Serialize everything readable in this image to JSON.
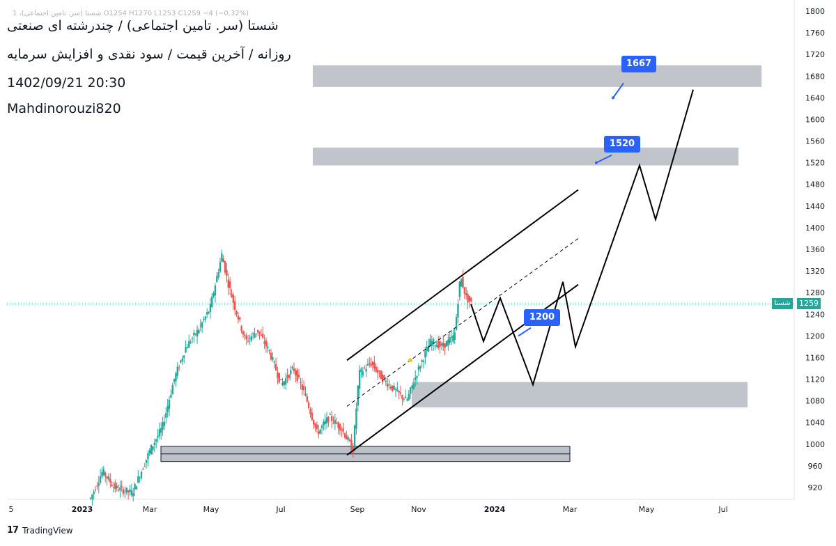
{
  "header": {
    "ohlc_line": "شستا (سر. تامین اجتماعی)، 1  O1254  H1270  L1253  C1259  −4 (−0.32%)",
    "title": "شستا (سر. تامین اجتماعی) / چندرشته ای صنعتی",
    "subtitle": "روزانه / آخرین قیمت / سود نقدی و افزایش سرمایه",
    "datetime": "1402/09/21 20:30",
    "author": "Mahdinorouzi820"
  },
  "footer": {
    "brand": "TradingView",
    "brand_mark": "17"
  },
  "price_axis": {
    "last_price": "1259",
    "symbol_short": "شستا"
  },
  "colors": {
    "up": "#26a69a",
    "down": "#ef5350",
    "zone": "#b2b5be",
    "tag": "#2962ff",
    "last_line": "#26a69a"
  },
  "chart_data": {
    "type": "candlestick",
    "ylim": [
      900,
      1800
    ],
    "y_ticks": [
      920,
      960,
      1000,
      1040,
      1080,
      1120,
      1160,
      1200,
      1240,
      1280,
      1320,
      1360,
      1400,
      1440,
      1480,
      1520,
      1560,
      1600,
      1640,
      1680,
      1720,
      1760,
      1800
    ],
    "x_ticks": [
      "5",
      "2023",
      "Mar",
      "May",
      "Jul",
      "Sep",
      "Nov",
      "2024",
      "Mar",
      "May",
      "Jul"
    ],
    "last_price": 1259,
    "price_path": [
      {
        "t": 0,
        "v": 900
      },
      {
        "t": 4,
        "v": 950
      },
      {
        "t": 8,
        "v": 920
      },
      {
        "t": 14,
        "v": 910
      },
      {
        "t": 20,
        "v": 990
      },
      {
        "t": 24,
        "v": 1030
      },
      {
        "t": 28,
        "v": 1120
      },
      {
        "t": 32,
        "v": 1180
      },
      {
        "t": 36,
        "v": 1210
      },
      {
        "t": 40,
        "v": 1250
      },
      {
        "t": 44,
        "v": 1350
      },
      {
        "t": 46,
        "v": 1300
      },
      {
        "t": 48,
        "v": 1260
      },
      {
        "t": 52,
        "v": 1190
      },
      {
        "t": 56,
        "v": 1210
      },
      {
        "t": 60,
        "v": 1170
      },
      {
        "t": 64,
        "v": 1110
      },
      {
        "t": 68,
        "v": 1140
      },
      {
        "t": 72,
        "v": 1090
      },
      {
        "t": 76,
        "v": 1020
      },
      {
        "t": 80,
        "v": 1050
      },
      {
        "t": 84,
        "v": 1030
      },
      {
        "t": 88,
        "v": 990
      },
      {
        "t": 90,
        "v": 1130
      },
      {
        "t": 94,
        "v": 1150
      },
      {
        "t": 98,
        "v": 1120
      },
      {
        "t": 102,
        "v": 1100
      },
      {
        "t": 106,
        "v": 1080
      },
      {
        "t": 110,
        "v": 1140
      },
      {
        "t": 114,
        "v": 1190
      },
      {
        "t": 118,
        "v": 1180
      },
      {
        "t": 122,
        "v": 1200
      },
      {
        "t": 124,
        "v": 1310
      },
      {
        "t": 126,
        "v": 1270
      },
      {
        "t": 128,
        "v": 1259
      }
    ],
    "zones": [
      {
        "from": 1660,
        "to": 1700
      },
      {
        "from": 1515,
        "to": 1548
      },
      {
        "from": 1068,
        "to": 1115
      },
      {
        "from": 968,
        "to": 996
      }
    ],
    "channel": {
      "upper": [
        [
          1155,
          1470
        ]
      ],
      "lower": [
        [
          980,
          1295
        ]
      ],
      "mid": [
        [
          1070,
          1380
        ]
      ]
    },
    "projection": [
      1259,
      1190,
      1270,
      1110,
      1300,
      1180,
      1515,
      1415,
      1655
    ],
    "labels": [
      {
        "text": "1667",
        "price": 1667
      },
      {
        "text": "1520",
        "price": 1520
      },
      {
        "text": "1200",
        "price": 1200
      }
    ]
  }
}
